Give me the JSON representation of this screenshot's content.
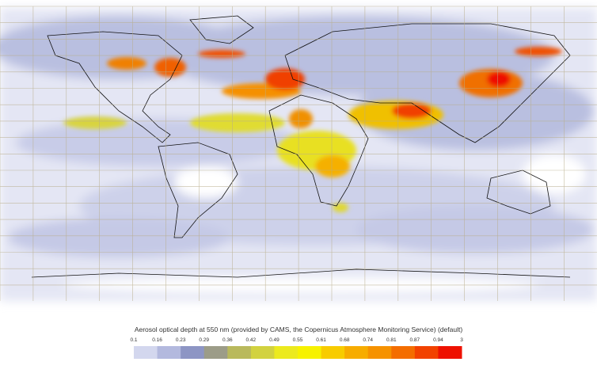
{
  "legend": {
    "title": "Aerosol optical depth at 550 nm (provided by CAMS, the Copernicus Atmosphere Monitoring Service) (default)",
    "ticks": [
      0.1,
      0.16,
      0.23,
      0.29,
      0.36,
      0.42,
      0.49,
      0.55,
      0.61,
      0.68,
      0.74,
      0.81,
      0.87,
      0.94,
      3
    ],
    "colors": [
      "#d3d7ee",
      "#b3b9de",
      "#8d95c4",
      "#9c9c88",
      "#b9b95c",
      "#d2d240",
      "#ecea1e",
      "#f7f200",
      "#f8cc00",
      "#f7ac00",
      "#f69200",
      "#f46d00",
      "#f24200",
      "#ee1100"
    ]
  }
}
